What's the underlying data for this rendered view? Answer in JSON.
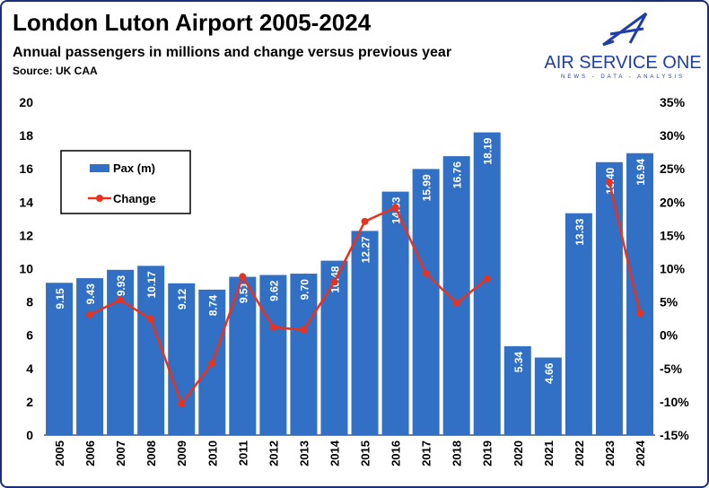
{
  "title": "London Luton Airport 2005-2024",
  "subtitle": "Annual passengers in millions and change versus previous year",
  "source": "Source: UK CAA",
  "logo": {
    "name": "AIR SERVICE ONE",
    "tagline": "NEWS - DATA - ANALYSIS"
  },
  "colors": {
    "bar": "#3170c4",
    "line": "#e8321e",
    "border": "#1a2f7a",
    "logo": "#1e3ea8"
  },
  "chart_data": {
    "type": "bar+line",
    "categories": [
      "2005",
      "2006",
      "2007",
      "2008",
      "2009",
      "2010",
      "2011",
      "2012",
      "2013",
      "2014",
      "2015",
      "2016",
      "2017",
      "2018",
      "2019",
      "2020",
      "2021",
      "2022",
      "2023",
      "2024"
    ],
    "series": [
      {
        "name": "Pax (m)",
        "type": "bar",
        "axis": "left",
        "values": [
          9.15,
          9.43,
          9.93,
          10.17,
          9.12,
          8.74,
          9.51,
          9.62,
          9.7,
          10.48,
          12.27,
          14.63,
          15.99,
          16.76,
          18.19,
          5.34,
          4.66,
          13.33,
          16.4,
          16.94
        ],
        "labels": [
          "9.15",
          "9.43",
          "9.93",
          "10.17",
          "9.12",
          "8.74",
          "9.51",
          "9.62",
          "9.70",
          "10.48",
          "12.27",
          "14.63",
          "15.99",
          "16.76",
          "18.19",
          "5.34",
          "4.66",
          "13.33",
          "16.40",
          "16.94"
        ]
      },
      {
        "name": "Change",
        "type": "line",
        "axis": "right",
        "values": [
          null,
          3.1,
          5.3,
          2.4,
          -10.3,
          -4.2,
          8.8,
          1.2,
          0.8,
          8.0,
          17.1,
          19.2,
          9.3,
          4.8,
          8.5,
          null,
          null,
          null,
          23.0,
          3.3
        ]
      }
    ],
    "ylim_left": [
      0,
      20
    ],
    "yticks_left": [
      "0",
      "2",
      "4",
      "6",
      "8",
      "10",
      "12",
      "14",
      "16",
      "18",
      "20"
    ],
    "ylim_right": [
      -15,
      35
    ],
    "yticks_right": [
      "-15%",
      "-10%",
      "-5%",
      "0%",
      "5%",
      "10%",
      "15%",
      "20%",
      "25%",
      "30%",
      "35%"
    ],
    "legend": "top-left",
    "grid": false
  }
}
